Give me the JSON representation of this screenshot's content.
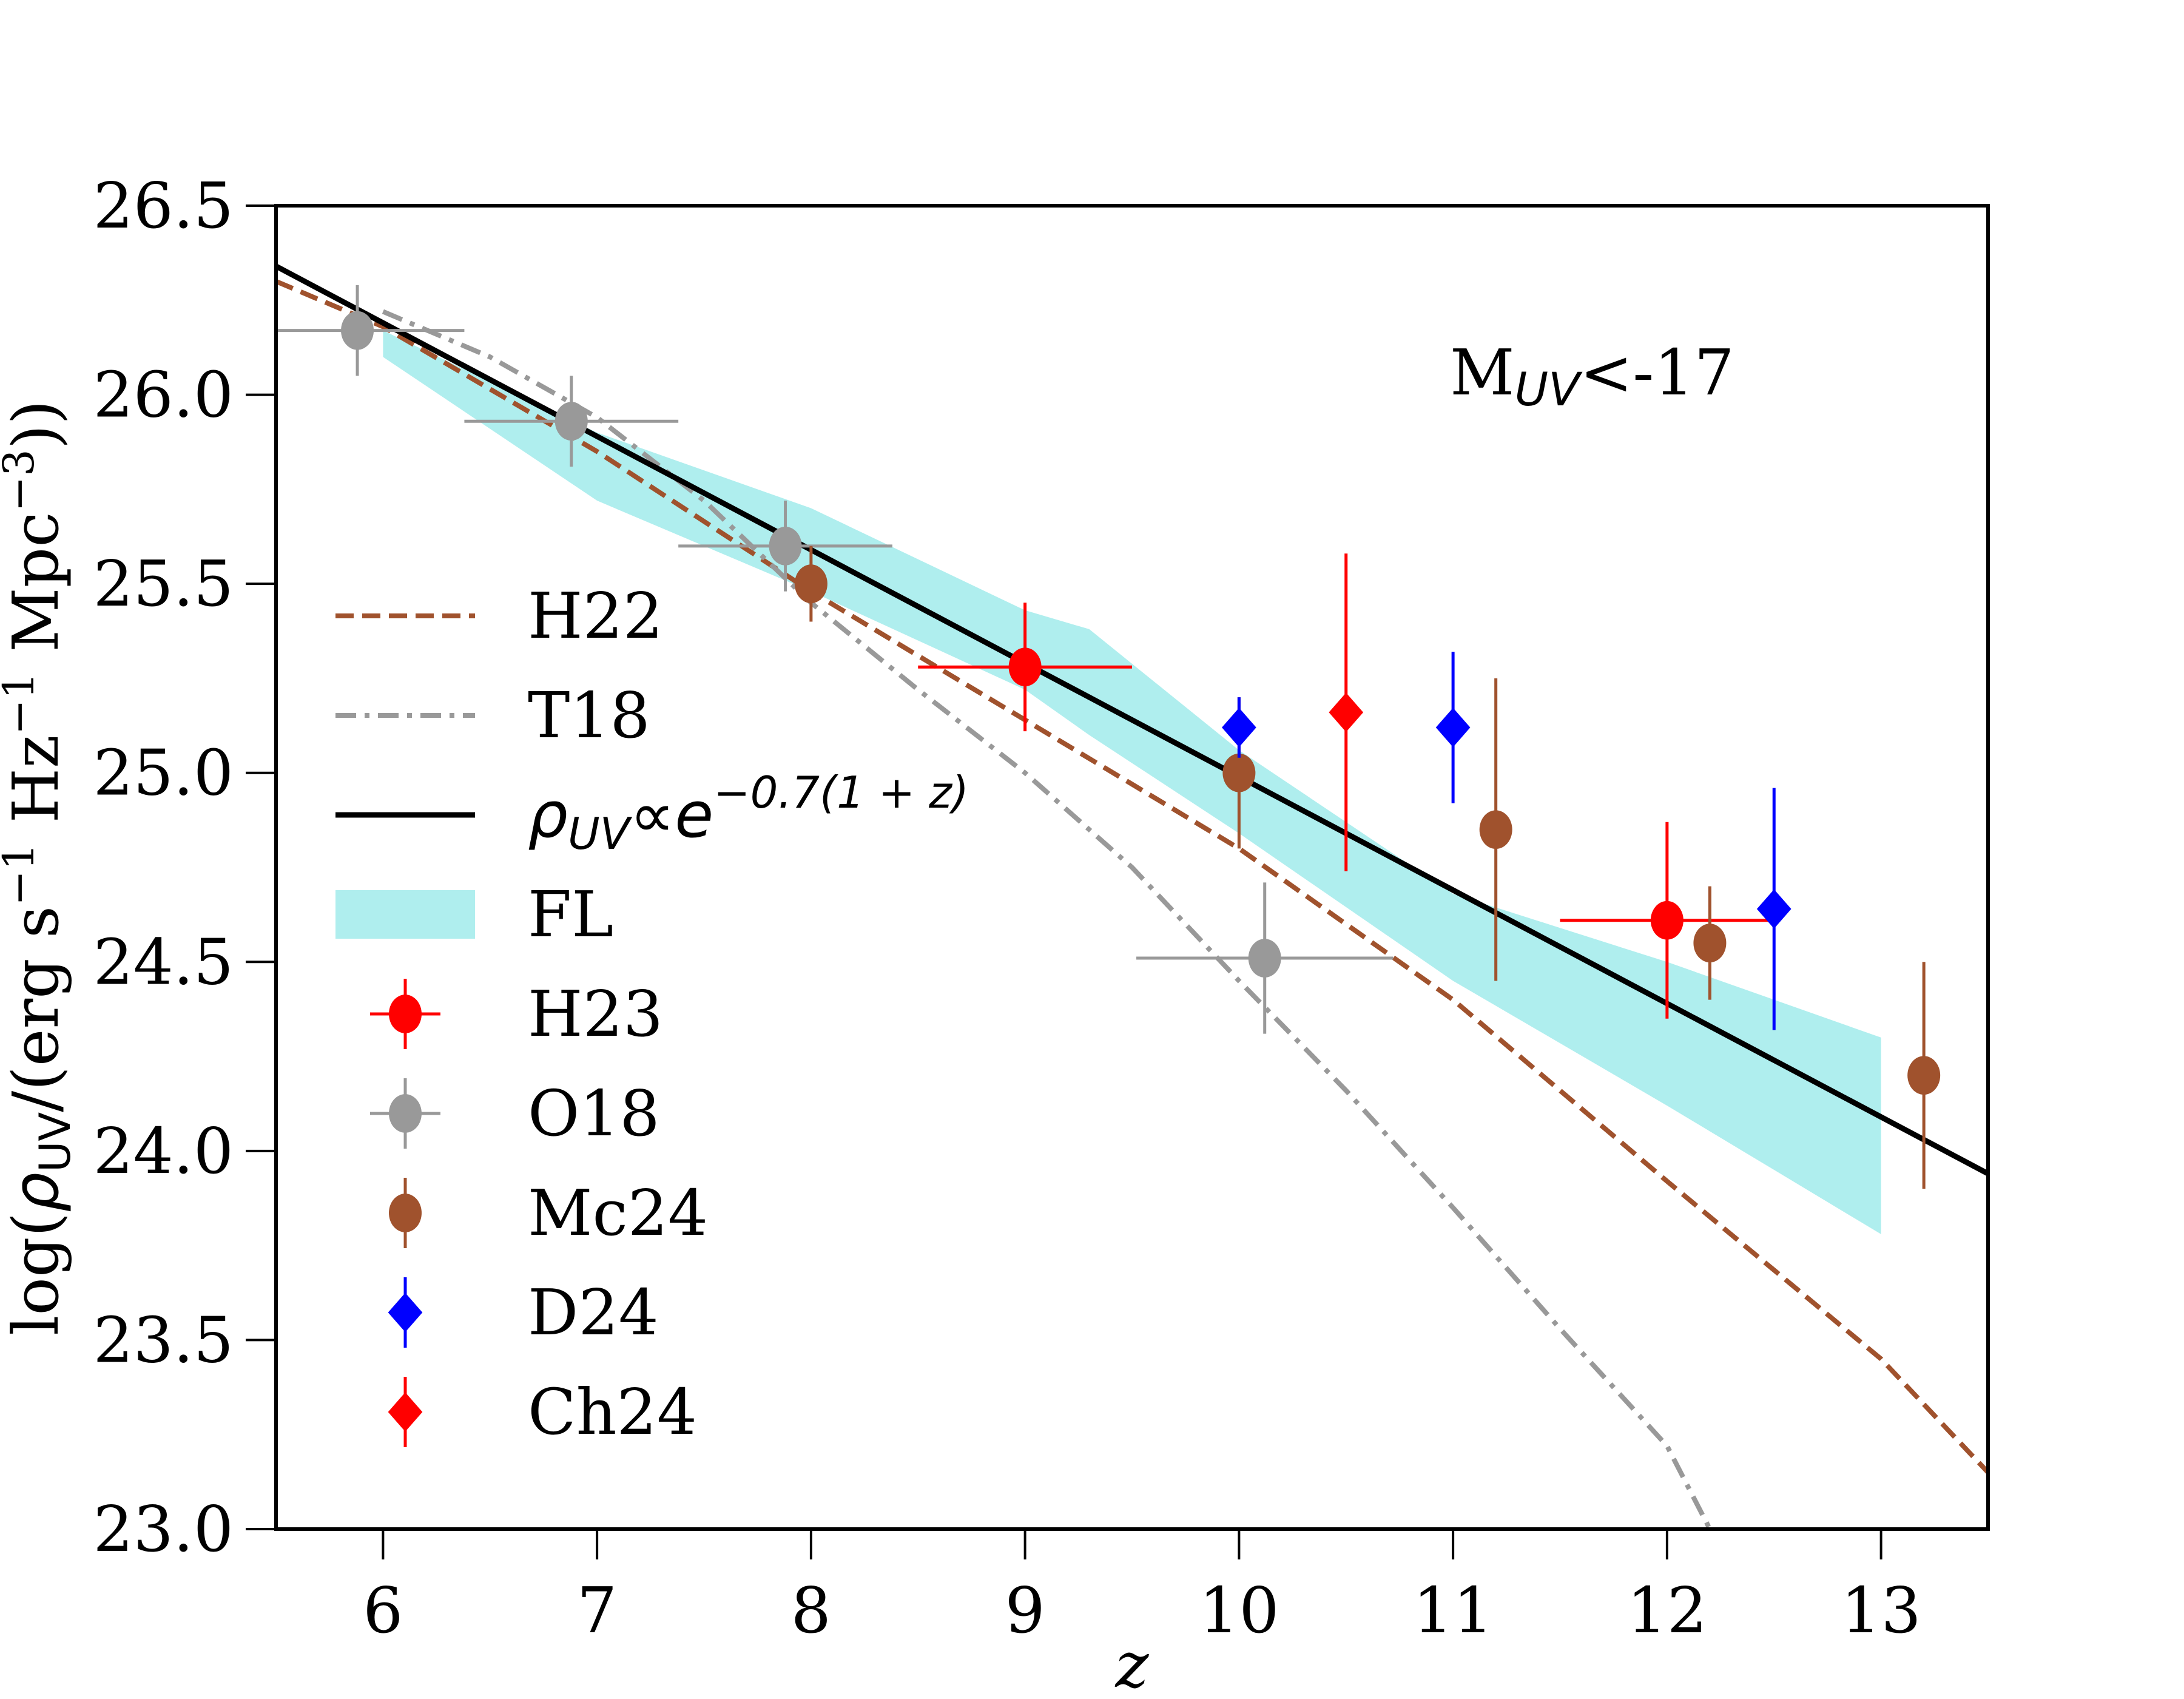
{
  "chart_data": {
    "type": "scatter",
    "title": "",
    "xlabel": "z",
    "ylabel": "log(ρ_UV/(erg s^-1 Hz^-1 Mpc^-3))",
    "ylabel_parts": {
      "prefix": "log(",
      "rho": "ρ",
      "sub": "UV",
      "middle": "/(erg s",
      "exp1": "−1",
      "hz": " Hz",
      "exp2": "−1",
      "mpc": " Mpc",
      "exp3": "−3",
      "suffix": "))"
    },
    "xlim": [
      5.5,
      13.5
    ],
    "ylim": [
      23.0,
      26.5
    ],
    "xticks": [
      6,
      7,
      8,
      9,
      10,
      11,
      12,
      13
    ],
    "xtick_labels": [
      "6",
      "7",
      "8",
      "9",
      "10",
      "11",
      "12",
      "13"
    ],
    "yticks": [
      23.0,
      23.5,
      24.0,
      24.5,
      25.0,
      25.5,
      26.0,
      26.5
    ],
    "ytick_labels": [
      "23.0",
      "23.5",
      "24.0",
      "24.5",
      "25.0",
      "25.5",
      "26.0",
      "26.5"
    ],
    "grid": false,
    "annotation": {
      "main": "M",
      "sub": "UV",
      "rest": "<-17",
      "position": "top-right"
    },
    "legend": {
      "position": "center-left",
      "entries": [
        {
          "key": "H22",
          "label": "H22",
          "style": "dashed-line"
        },
        {
          "key": "T18",
          "label": "T18",
          "style": "dashdot-line"
        },
        {
          "key": "fit",
          "label_rho": "ρ",
          "label_sub": "UV",
          "label_prop": "∝e",
          "label_exp": "−0.7(1 + z)",
          "style": "solid-line"
        },
        {
          "key": "FL",
          "label": "FL",
          "style": "band"
        },
        {
          "key": "H23",
          "label": "H23",
          "style": "circle-errorbar"
        },
        {
          "key": "O18",
          "label": "O18",
          "style": "circle-errorbar"
        },
        {
          "key": "Mc24",
          "label": "Mc24",
          "style": "circle-errorbar"
        },
        {
          "key": "D24",
          "label": "D24",
          "style": "diamond-errorbar"
        },
        {
          "key": "Ch24",
          "label": "Ch24",
          "style": "diamond-errorbar"
        }
      ]
    },
    "colors": {
      "H22": "#a0522d",
      "T18": "#999999",
      "fit": "#000000",
      "FL": "#afeeee",
      "H23": "#ff0000",
      "O18": "#999999",
      "Mc24": "#a0522d",
      "D24": "#0000ff",
      "Ch24": "#ff0000"
    },
    "lines": [
      {
        "name": "H22",
        "x": [
          5.5,
          6,
          7,
          8,
          9,
          10,
          11,
          12,
          13,
          13.5
        ],
        "y": [
          26.3,
          26.18,
          25.85,
          25.48,
          25.14,
          24.8,
          24.4,
          23.92,
          23.45,
          23.15
        ]
      },
      {
        "name": "T18",
        "x": [
          6,
          6.5,
          7,
          7.5,
          8,
          8.5,
          9,
          9.5,
          10,
          10.5,
          11,
          11.5,
          12,
          12.2
        ],
        "y": [
          26.22,
          26.1,
          25.94,
          25.72,
          25.45,
          25.22,
          25.0,
          24.75,
          24.45,
          24.16,
          23.85,
          23.53,
          23.22,
          23.0
        ]
      },
      {
        "name": "fit",
        "x": [
          5.5,
          13.5
        ],
        "y": [
          26.34,
          23.94
        ]
      }
    ],
    "band": {
      "name": "FL",
      "x": [
        6,
        7,
        8,
        9,
        9.3,
        10,
        11,
        12,
        13
      ],
      "upper": [
        26.17,
        25.9,
        25.7,
        25.43,
        25.38,
        25.06,
        24.68,
        24.5,
        24.3
      ],
      "lower": [
        26.1,
        25.72,
        25.48,
        25.22,
        25.1,
        24.84,
        24.45,
        24.12,
        23.78
      ]
    },
    "series": [
      {
        "name": "H23",
        "marker": "circle",
        "points": [
          {
            "x": 9.0,
            "y": 25.28,
            "xerr": 0.5,
            "yerr": 0.17
          },
          {
            "x": 12.0,
            "y": 24.61,
            "xerr": 0.5,
            "yerr": 0.26
          }
        ]
      },
      {
        "name": "O18",
        "marker": "circle",
        "points": [
          {
            "x": 5.88,
            "y": 26.17,
            "xerr": 0.5,
            "yerr": 0.12
          },
          {
            "x": 6.88,
            "y": 25.93,
            "xerr": 0.5,
            "yerr": 0.12
          },
          {
            "x": 7.88,
            "y": 25.6,
            "xerr": 0.5,
            "yerr": 0.12
          },
          {
            "x": 10.12,
            "y": 24.51,
            "xerr": 0.6,
            "yerr": 0.2
          }
        ]
      },
      {
        "name": "Mc24",
        "marker": "circle",
        "points": [
          {
            "x": 8.0,
            "y": 25.5,
            "xerr": 0,
            "yerr": 0.1
          },
          {
            "x": 10.0,
            "y": 25.0,
            "xerr": 0,
            "yerr": 0.2
          },
          {
            "x": 11.2,
            "y": 24.85,
            "xerr": 0,
            "yerr": 0.4
          },
          {
            "x": 12.2,
            "y": 24.55,
            "xerr": 0,
            "yerr": 0.15
          },
          {
            "x": 13.2,
            "y": 24.2,
            "xerr": 0,
            "yerr": 0.3
          }
        ]
      },
      {
        "name": "D24",
        "marker": "diamond",
        "points": [
          {
            "x": 10.0,
            "y": 25.12,
            "xerr": 0,
            "yerr": 0.08
          },
          {
            "x": 11.0,
            "y": 25.12,
            "xerr": 0,
            "yerr": 0.2
          },
          {
            "x": 12.5,
            "y": 24.64,
            "xerr": 0,
            "yerr": 0.32
          }
        ]
      },
      {
        "name": "Ch24",
        "marker": "diamond",
        "points": [
          {
            "x": 10.5,
            "y": 25.16,
            "xerr": 0,
            "yerr": 0.42
          }
        ]
      }
    ]
  }
}
